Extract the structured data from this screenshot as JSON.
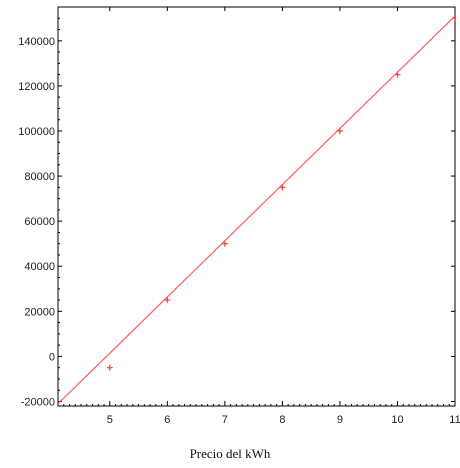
{
  "chart_data": {
    "type": "scatter",
    "xlabel": "Precio del kWh",
    "ylabel": "",
    "title": "",
    "xlim": [
      4.1,
      11
    ],
    "ylim": [
      -22000,
      155000
    ],
    "x_ticks": [
      5,
      6,
      7,
      8,
      9,
      10,
      11
    ],
    "x_tick_labels": [
      "5",
      "6",
      "7",
      "8",
      "9",
      "10",
      "11"
    ],
    "y_ticks": [
      -20000,
      0,
      20000,
      40000,
      60000,
      80000,
      100000,
      120000,
      140000
    ],
    "y_tick_labels": [
      "-20000",
      "0",
      "20000",
      "40000",
      "60000",
      "80000",
      "100000",
      "120000",
      "140000"
    ],
    "grid": false,
    "series": [
      {
        "type": "scatter",
        "marker": "+",
        "points": [
          {
            "x": 5,
            "y": -5000
          },
          {
            "x": 6,
            "y": 25000
          },
          {
            "x": 7,
            "y": 50000
          },
          {
            "x": 8,
            "y": 75000
          },
          {
            "x": 9,
            "y": 100000
          },
          {
            "x": 10,
            "y": 125000
          },
          {
            "x": 11,
            "y": 150000
          }
        ]
      },
      {
        "type": "line",
        "points": [
          {
            "x": 4.1,
            "y": -21000
          },
          {
            "x": 11,
            "y": 151000
          }
        ]
      }
    ],
    "colors": {
      "points": "#ff3b3b",
      "line": "#ff5a5a",
      "axes": "#000000"
    }
  }
}
